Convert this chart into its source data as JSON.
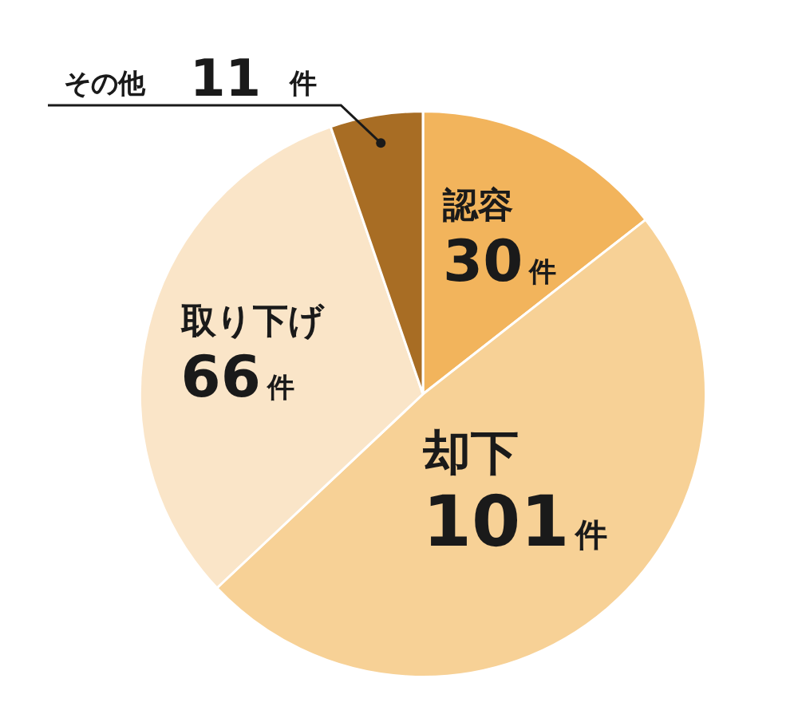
{
  "chart_data": {
    "type": "pie",
    "categories": [
      "認容",
      "却下",
      "取り下げ",
      "その他"
    ],
    "values": [
      30,
      101,
      66,
      11
    ],
    "colors": [
      "#f2b45c",
      "#f7d196",
      "#fae5c8",
      "#a86d24"
    ],
    "value_labels": [
      "30件",
      "101件",
      "66件",
      "11件"
    ]
  }
}
